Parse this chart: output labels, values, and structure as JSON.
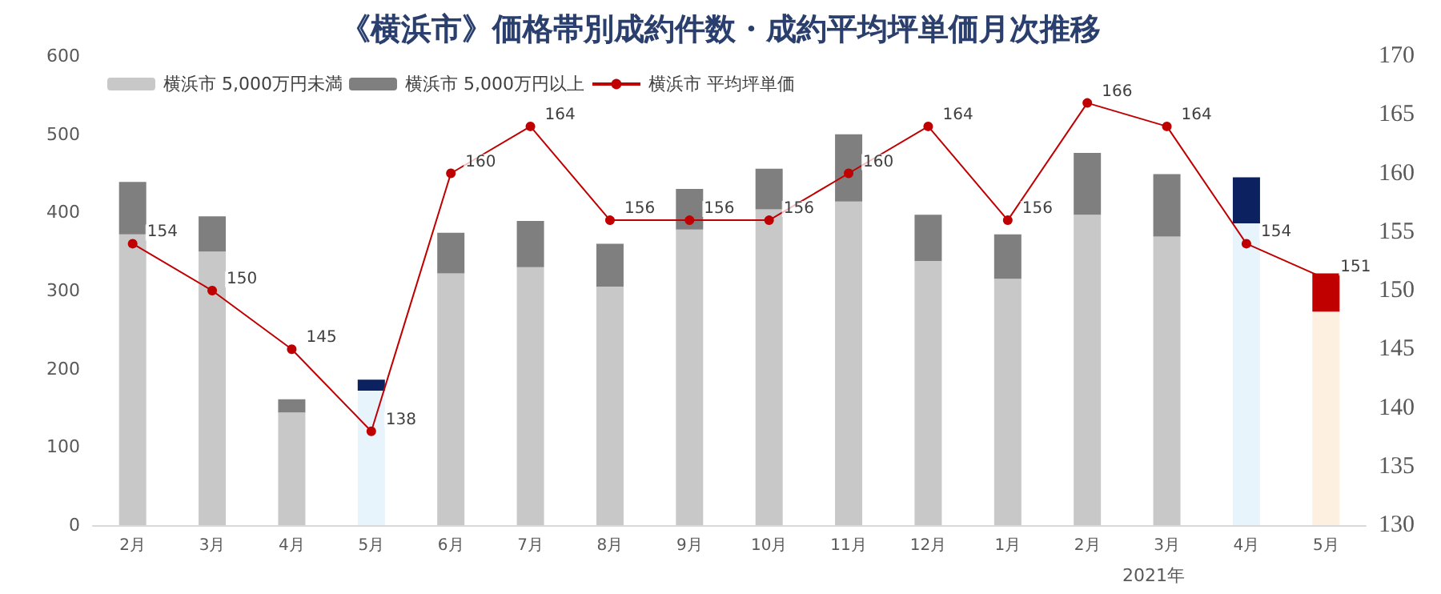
{
  "chart_data": {
    "type": "bar",
    "title": "《横浜市》価格帯別成約件数・成約平均坪単価月次推移",
    "categories": [
      "2月",
      "3月",
      "4月",
      "5月",
      "6月",
      "7月",
      "8月",
      "9月",
      "10月",
      "11月",
      "12月",
      "1月",
      "2月",
      "3月",
      "4月",
      "5月"
    ],
    "stacked": true,
    "series": [
      {
        "name": "横浜市 5,000万円未満",
        "color": "#c8c8c8",
        "colors": [
          "#c8c8c8",
          "#c8c8c8",
          "#c8c8c8",
          "#e8f4fc",
          "#c8c8c8",
          "#c8c8c8",
          "#c8c8c8",
          "#c8c8c8",
          "#c8c8c8",
          "#c8c8c8",
          "#c8c8c8",
          "#c8c8c8",
          "#c8c8c8",
          "#c8c8c8",
          "#e8f4fc",
          "#fdf0e0"
        ],
        "values": [
          372,
          350,
          144,
          172,
          322,
          330,
          305,
          378,
          404,
          414,
          338,
          315,
          397,
          369,
          386,
          273
        ]
      },
      {
        "name": "横浜市 5,000万円以上",
        "color": "#7f7f7f",
        "colors": [
          "#7f7f7f",
          "#7f7f7f",
          "#7f7f7f",
          "#0b2160",
          "#7f7f7f",
          "#7f7f7f",
          "#7f7f7f",
          "#7f7f7f",
          "#7f7f7f",
          "#7f7f7f",
          "#7f7f7f",
          "#7f7f7f",
          "#7f7f7f",
          "#7f7f7f",
          "#0b2160",
          "#c00000"
        ],
        "values": [
          67,
          45,
          17,
          14,
          52,
          59,
          55,
          52,
          52,
          86,
          59,
          57,
          79,
          80,
          59,
          49
        ]
      },
      {
        "name": "横浜市 平均坪単価",
        "type": "line",
        "axis": "y2",
        "color": "#c00000",
        "data_labels": true,
        "values": [
          154,
          150,
          145,
          138,
          160,
          164,
          156,
          156,
          156,
          160,
          164,
          156,
          166,
          164,
          154,
          151
        ]
      }
    ],
    "ylim": [
      0,
      600
    ],
    "yticks": [
      0,
      100,
      200,
      300,
      400,
      500,
      600
    ],
    "y2lim": [
      130,
      170
    ],
    "y2ticks": [
      130,
      135,
      140,
      145,
      150,
      155,
      160,
      165,
      170
    ],
    "annotations": [
      "2021年"
    ],
    "marker": "circle",
    "line_style": "solid",
    "legend": "top left",
    "grid": false
  }
}
